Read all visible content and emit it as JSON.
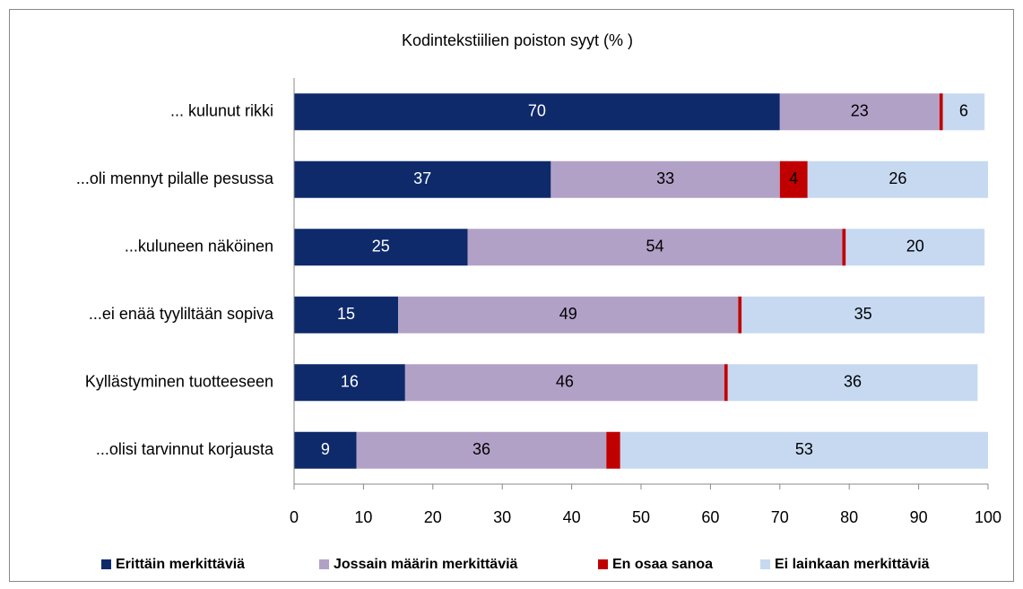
{
  "chart_data": {
    "type": "stacked_bar_horizontal",
    "title": "Kodintekstiilien poiston syyt (% )",
    "categories": [
      "... kulunut rikki",
      "...oli mennyt pilalle pesussa",
      "...kuluneen näköinen",
      "...ei enää tyyliltään sopiva",
      "Kyllästyminen tuotteeseen",
      "...olisi tarvinnut korjausta"
    ],
    "series": [
      {
        "name": "Erittäin merkittäviä",
        "color": "#0e2a6b",
        "values": [
          70,
          37,
          25,
          15,
          16,
          9
        ]
      },
      {
        "name": "Jossain määrin merkittäviä",
        "color": "#b2a1c7",
        "values": [
          23,
          33,
          54,
          49,
          46,
          36
        ]
      },
      {
        "name": "En osaa sanoa",
        "color": "#c00000",
        "values": [
          0.5,
          4,
          0.5,
          0.5,
          0.5,
          2
        ]
      },
      {
        "name": "Ei lainkaan merkittäviä",
        "color": "#c6d9f1",
        "values": [
          6,
          26,
          20,
          35,
          36,
          53
        ]
      }
    ],
    "xlim": [
      0,
      100
    ],
    "xticks": [
      0,
      10,
      20,
      30,
      40,
      50,
      60,
      70,
      80,
      90,
      100
    ],
    "legend": "bottom",
    "grid": false
  }
}
